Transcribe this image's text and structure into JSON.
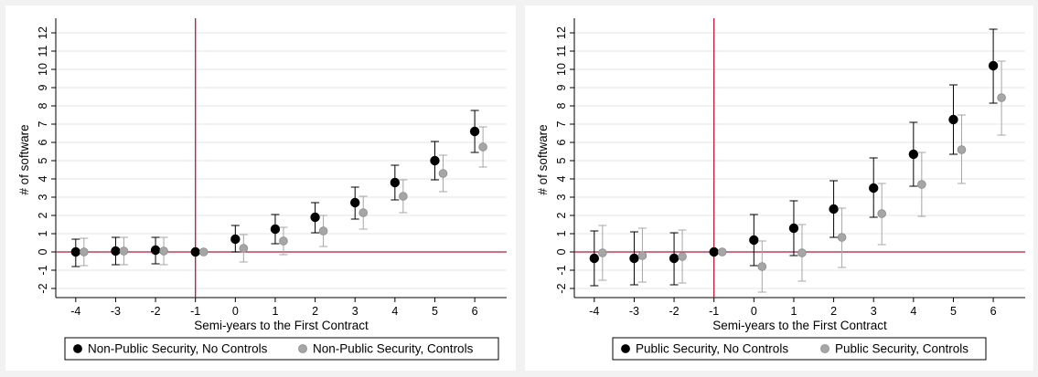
{
  "chart_data": [
    {
      "type": "scatter",
      "xlabel": "Semi-years to the First Contract",
      "ylabel": "# of software",
      "x_ticks": [
        -4,
        -3,
        -2,
        -1,
        0,
        1,
        2,
        3,
        4,
        5,
        6
      ],
      "y_ticks": [
        -2,
        -1,
        0,
        1,
        2,
        3,
        4,
        5,
        6,
        7,
        8,
        9,
        10,
        11,
        12
      ],
      "xlim": [
        -4.5,
        6.8
      ],
      "ylim": [
        -2.5,
        12.6
      ],
      "reference_lines": {
        "vertical_x": -1,
        "horizontal_y": 0,
        "color": "#b5173b"
      },
      "legend_position": "bottom",
      "series": [
        {
          "name": "Non-Public Security, No Controls",
          "color": "#000000",
          "x": [
            -4,
            -3,
            -2,
            -1,
            0,
            1,
            2,
            3,
            4,
            5,
            6
          ],
          "y": [
            0.0,
            0.05,
            0.1,
            0.0,
            0.7,
            1.25,
            1.9,
            2.7,
            3.8,
            5.0,
            6.6
          ],
          "ci_low": [
            -0.8,
            -0.7,
            -0.65,
            0.0,
            0.0,
            0.45,
            1.05,
            1.8,
            2.85,
            3.95,
            5.45
          ],
          "ci_high": [
            0.7,
            0.8,
            0.8,
            0.0,
            1.45,
            2.05,
            2.7,
            3.55,
            4.75,
            6.05,
            7.75
          ]
        },
        {
          "name": "Non-Public Security, Controls",
          "color": "#a6a6a6",
          "x": [
            -4,
            -3,
            -2,
            -1,
            0,
            1,
            2,
            3,
            4,
            5,
            6
          ],
          "y": [
            0.0,
            0.05,
            0.05,
            0.0,
            0.2,
            0.6,
            1.15,
            2.15,
            3.05,
            4.3,
            5.75
          ],
          "ci_low": [
            -0.75,
            -0.7,
            -0.7,
            0.0,
            -0.55,
            -0.15,
            0.3,
            1.25,
            2.15,
            3.3,
            4.65
          ],
          "ci_high": [
            0.75,
            0.8,
            0.8,
            0.0,
            0.95,
            1.35,
            2.0,
            3.05,
            3.95,
            5.3,
            6.85
          ]
        }
      ]
    },
    {
      "type": "scatter",
      "xlabel": "Semi-years to the First Contract",
      "ylabel": "# of software",
      "x_ticks": [
        -4,
        -3,
        -2,
        -1,
        0,
        1,
        2,
        3,
        4,
        5,
        6
      ],
      "y_ticks": [
        -2,
        -1,
        0,
        1,
        2,
        3,
        4,
        5,
        6,
        7,
        8,
        9,
        10,
        11,
        12
      ],
      "xlim": [
        -4.5,
        6.8
      ],
      "ylim": [
        -2.5,
        12.6
      ],
      "reference_lines": {
        "vertical_x": -1,
        "horizontal_y": 0,
        "color": "#b5173b"
      },
      "legend_position": "bottom",
      "series": [
        {
          "name": "Public Security, No Controls",
          "color": "#000000",
          "x": [
            -4,
            -3,
            -2,
            -1,
            0,
            1,
            2,
            3,
            4,
            5,
            6
          ],
          "y": [
            -0.35,
            -0.35,
            -0.35,
            0.0,
            0.65,
            1.3,
            2.35,
            3.5,
            5.35,
            7.25,
            10.2
          ],
          "ci_low": [
            -1.85,
            -1.8,
            -1.8,
            0.0,
            -0.75,
            -0.2,
            0.8,
            1.9,
            3.6,
            5.35,
            8.15
          ],
          "ci_high": [
            1.15,
            1.1,
            1.05,
            0.0,
            2.05,
            2.8,
            3.9,
            5.15,
            7.1,
            9.15,
            12.2
          ]
        },
        {
          "name": "Public Security, Controls",
          "color": "#a6a6a6",
          "x": [
            -4,
            -3,
            -2,
            -1,
            0,
            1,
            2,
            3,
            4,
            5,
            6
          ],
          "y": [
            -0.05,
            -0.2,
            -0.25,
            0.0,
            -0.8,
            -0.05,
            0.8,
            2.1,
            3.7,
            5.6,
            8.45
          ],
          "ci_low": [
            -1.55,
            -1.65,
            -1.7,
            0.0,
            -2.2,
            -1.6,
            -0.85,
            0.4,
            1.95,
            3.75,
            6.4
          ],
          "ci_high": [
            1.45,
            1.3,
            1.2,
            0.0,
            0.6,
            1.5,
            2.4,
            3.75,
            5.45,
            7.5,
            10.45
          ]
        }
      ]
    }
  ]
}
